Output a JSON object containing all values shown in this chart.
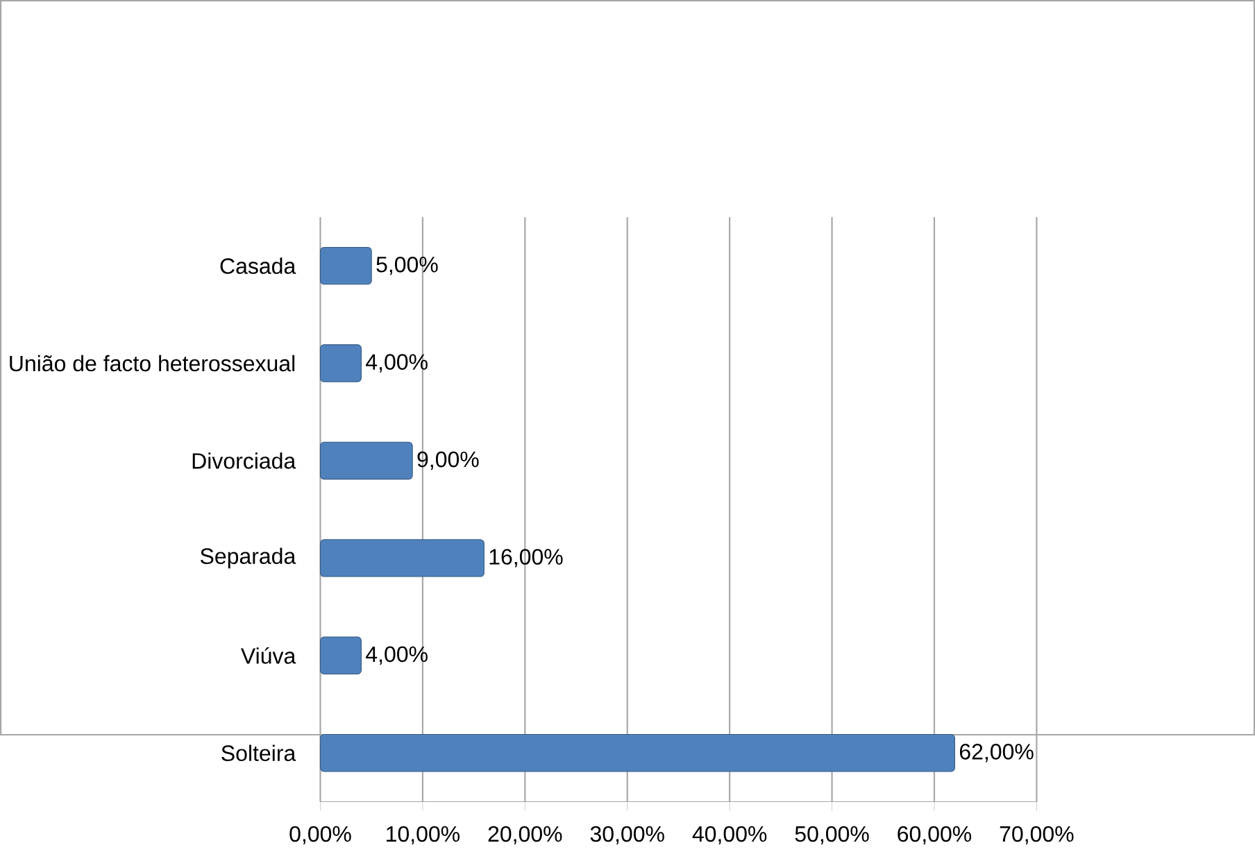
{
  "chart_data": {
    "type": "bar",
    "orientation": "horizontal",
    "categories": [
      "Casada",
      "União de facto heterossexual",
      "Divorciada",
      "Separada",
      "Viúva",
      "Solteira"
    ],
    "values": [
      5,
      4,
      9,
      16,
      4,
      62
    ],
    "value_labels": [
      "5,00%",
      "4,00%",
      "9,00%",
      "16,00%",
      "4,00%",
      "62,00%"
    ],
    "color": "#4f81bd",
    "xlim": [
      0,
      70
    ],
    "xticks": [
      {
        "value": 0,
        "label": "0,00%"
      },
      {
        "value": 10,
        "label": "10,00%"
      },
      {
        "value": 20,
        "label": "20,00%"
      },
      {
        "value": 30,
        "label": "30,00%"
      },
      {
        "value": 40,
        "label": "40,00%"
      },
      {
        "value": 50,
        "label": "50,00%"
      },
      {
        "value": 60,
        "label": "60,00%"
      },
      {
        "value": 70,
        "label": "70,00%"
      }
    ],
    "grid": "x"
  }
}
